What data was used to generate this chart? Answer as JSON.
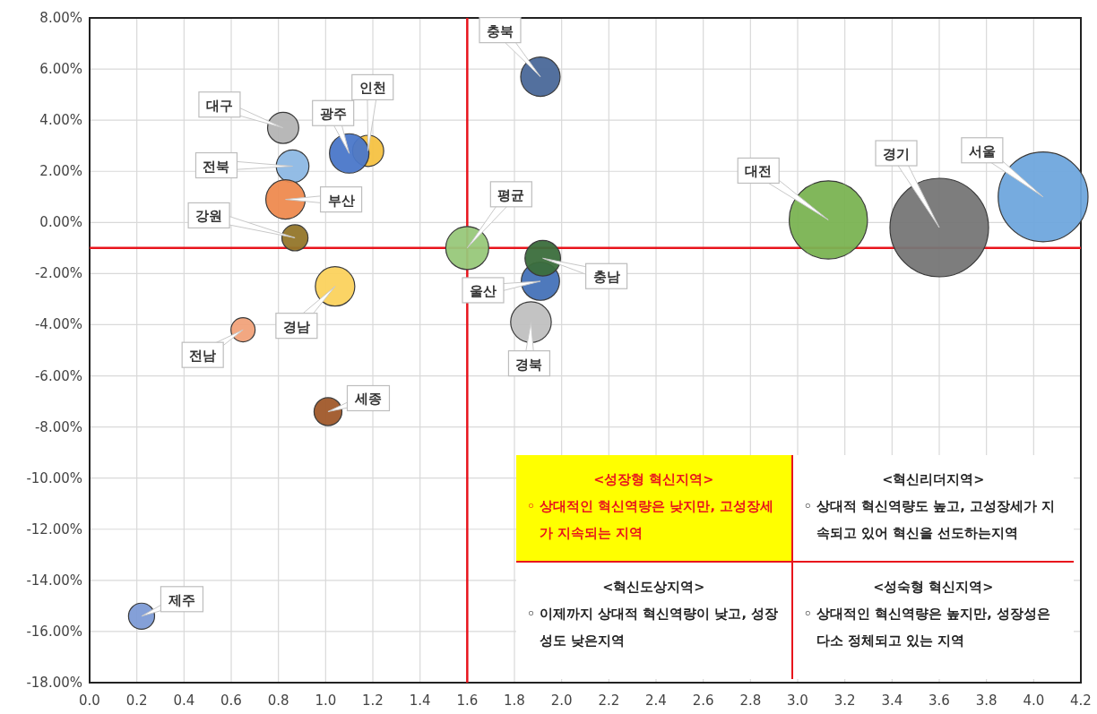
{
  "chart_data": {
    "type": "bubble",
    "xlim": [
      0,
      4.2
    ],
    "ylim": [
      -18,
      8
    ],
    "xticks": [
      {
        "value": 0,
        "label": "0.0"
      },
      {
        "value": 0.2,
        "label": "0.2"
      },
      {
        "value": 0.4,
        "label": "0.4"
      },
      {
        "value": 0.6,
        "label": "0.6"
      },
      {
        "value": 0.8,
        "label": "0.8"
      },
      {
        "value": 1.0,
        "label": "1.0"
      },
      {
        "value": 1.2,
        "label": "1.2"
      },
      {
        "value": 1.4,
        "label": "1.4"
      },
      {
        "value": 1.6,
        "label": "1.6"
      },
      {
        "value": 1.8,
        "label": "1.8"
      },
      {
        "value": 2.0,
        "label": "2.0"
      },
      {
        "value": 2.2,
        "label": "2.2"
      },
      {
        "value": 2.4,
        "label": "2.4"
      },
      {
        "value": 2.6,
        "label": "2.6"
      },
      {
        "value": 2.8,
        "label": "2.8"
      },
      {
        "value": 3.0,
        "label": "3.0"
      },
      {
        "value": 3.2,
        "label": "3.2"
      },
      {
        "value": 3.4,
        "label": "3.4"
      },
      {
        "value": 3.6,
        "label": "3.6"
      },
      {
        "value": 3.8,
        "label": "3.8"
      },
      {
        "value": 4.0,
        "label": "4.0"
      },
      {
        "value": 4.2,
        "label": "4.2"
      }
    ],
    "yticks": [
      {
        "value": 8,
        "label": "8.00%"
      },
      {
        "value": 6,
        "label": "6.00%"
      },
      {
        "value": 4,
        "label": "4.00%"
      },
      {
        "value": 2,
        "label": "2.00%"
      },
      {
        "value": 0,
        "label": "0.00%"
      },
      {
        "value": -2,
        "label": "-2.00%"
      },
      {
        "value": -4,
        "label": "-4.00%"
      },
      {
        "value": -6,
        "label": "-6.00%"
      },
      {
        "value": -8,
        "label": "-8.00%"
      },
      {
        "value": -10,
        "label": "-10.00%"
      },
      {
        "value": -12,
        "label": "-12.00%"
      },
      {
        "value": -14,
        "label": "-14.00%"
      },
      {
        "value": -16,
        "label": "-16.00%"
      },
      {
        "value": -18,
        "label": "-18.00%"
      }
    ],
    "grid": true,
    "ref_lines": [
      {
        "axis": "x",
        "value": 1.6,
        "color": "#e8141c"
      },
      {
        "axis": "y",
        "value": -1.0,
        "color": "#e8141c"
      }
    ],
    "series": [
      {
        "name": "서울",
        "color": "#6fa7dd",
        "x": [
          4.04
        ],
        "values": [
          1.0
        ],
        "sizes": [
          0.83
        ]
      },
      {
        "name": "경기",
        "color": "#767676",
        "x": [
          3.6
        ],
        "values": [
          -0.2
        ],
        "sizes": [
          1
        ]
      },
      {
        "name": "대전",
        "color": "#7ab352",
        "x": [
          3.13
        ],
        "values": [
          0.1
        ],
        "sizes": [
          0.63
        ]
      },
      {
        "name": "평균",
        "color": "#98c87a",
        "x": [
          1.6
        ],
        "values": [
          -1.0
        ],
        "sizes": [
          0.19
        ]
      },
      {
        "name": "충북",
        "color": "#4a6899",
        "x": [
          1.91
        ],
        "values": [
          5.7
        ],
        "sizes": [
          0.16
        ]
      },
      {
        "name": "울산",
        "color": "#4472b8",
        "x": [
          1.91
        ],
        "values": [
          -2.3
        ],
        "sizes": [
          0.15
        ]
      },
      {
        "name": "충남",
        "color": "#3b6e3c",
        "x": [
          1.92
        ],
        "values": [
          -1.4
        ],
        "sizes": [
          0.13
        ]
      },
      {
        "name": "경북",
        "color": "#c0c0c0",
        "x": [
          1.87
        ],
        "values": [
          -3.9
        ],
        "sizes": [
          0.17
        ]
      },
      {
        "name": "인천",
        "color": "#f5c242",
        "x": [
          1.18
        ],
        "values": [
          2.8
        ],
        "sizes": [
          0.1
        ]
      },
      {
        "name": "광주",
        "color": "#4a77c9",
        "x": [
          1.1
        ],
        "values": [
          2.7
        ],
        "sizes": [
          0.16
        ]
      },
      {
        "name": "대구",
        "color": "#b4b4b4",
        "x": [
          0.82
        ],
        "values": [
          3.7
        ],
        "sizes": [
          0.1
        ]
      },
      {
        "name": "전북",
        "color": "#8db8e4",
        "x": [
          0.86
        ],
        "values": [
          2.2
        ],
        "sizes": [
          0.11
        ]
      },
      {
        "name": "부산",
        "color": "#ee8a4f",
        "x": [
          0.83
        ],
        "values": [
          0.9
        ],
        "sizes": [
          0.16
        ]
      },
      {
        "name": "강원",
        "color": "#94762a",
        "x": [
          0.87
        ],
        "values": [
          -0.6
        ],
        "sizes": [
          0.07
        ]
      },
      {
        "name": "경남",
        "color": "#fbd25d",
        "x": [
          1.04
        ],
        "values": [
          -2.5
        ],
        "sizes": [
          0.16
        ]
      },
      {
        "name": "전남",
        "color": "#f1a27a",
        "x": [
          0.65
        ],
        "values": [
          -4.2
        ],
        "sizes": [
          0.06
        ]
      },
      {
        "name": "세종",
        "color": "#a0582a",
        "x": [
          1.01
        ],
        "values": [
          -7.4
        ],
        "sizes": [
          0.08
        ]
      },
      {
        "name": "제주",
        "color": "#7d9bd6",
        "x": [
          0.22
        ],
        "values": [
          -15.4
        ],
        "sizes": [
          0.07
        ]
      }
    ],
    "annotations": [
      "<성장형 혁신지역>",
      "◦ 상대적인 혁신역량은 낮지만, 고성장세가 지속되는 지역",
      "<혁신리더지역>",
      "◦ 상대적 혁신역량도 높고, 고성장세가 지속되고 있어 혁신을 선도하는지역",
      "<혁신도상지역>",
      "◦ 이제까지 상대적 혁신역량이 낮고, 성장성도 낮은지역",
      "<성숙형 혁신지역>",
      "◦ 상대적인 혁신역량은 높지만, 성장성은 다소 정체되고 있는 지역"
    ]
  }
}
